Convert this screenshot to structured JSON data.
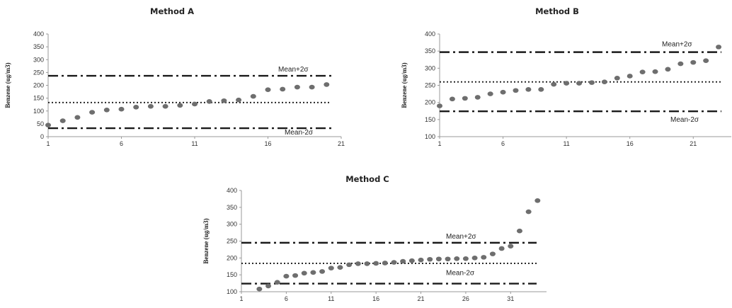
{
  "chart_data": [
    {
      "type": "scatter",
      "title": "Method A",
      "ylabel": "Benzene (ug/m3)",
      "xlabel": "",
      "xlim": [
        1,
        21
      ],
      "ylim": [
        0,
        400
      ],
      "xticks": [
        "1",
        "6",
        "11",
        "16",
        "21"
      ],
      "yticks": [
        "0",
        "50",
        "100",
        "150",
        "200",
        "250",
        "300",
        "350",
        "400"
      ],
      "grid": false,
      "x": [
        1,
        2,
        3,
        4,
        5,
        6,
        7,
        8,
        9,
        10,
        11,
        12,
        13,
        14,
        15,
        16,
        17,
        18,
        19,
        20
      ],
      "values": [
        45,
        62,
        75,
        95,
        104,
        107,
        115,
        118,
        118,
        122,
        127,
        137,
        140,
        143,
        157,
        183,
        185,
        193,
        193,
        203
      ],
      "mean": 133,
      "upper": 237,
      "lower": 33,
      "upper_label": "Mean+2σ",
      "lower_label": "Mean-2σ"
    },
    {
      "type": "scatter",
      "title": "Method B",
      "ylabel": "Benzene (ug/m3)",
      "xlabel": "",
      "xlim": [
        1,
        24
      ],
      "ylim": [
        100,
        400
      ],
      "xticks": [
        "1",
        "6",
        "11",
        "16",
        "21"
      ],
      "yticks": [
        "100",
        "150",
        "200",
        "250",
        "300",
        "350",
        "400"
      ],
      "grid": false,
      "x": [
        1,
        2,
        3,
        4,
        5,
        6,
        7,
        8,
        9,
        10,
        11,
        12,
        13,
        14,
        15,
        16,
        17,
        18,
        19,
        20,
        21,
        22,
        23
      ],
      "values": [
        190,
        210,
        212,
        215,
        225,
        230,
        235,
        238,
        238,
        253,
        256,
        256,
        258,
        260,
        271,
        277,
        289,
        290,
        297,
        313,
        317,
        322,
        362
      ],
      "mean": 260,
      "upper": 347,
      "lower": 174,
      "upper_label": "Mean+2σ",
      "lower_label": "Mean-2σ"
    },
    {
      "type": "scatter",
      "title": "Method C",
      "ylabel": "Benzene (ug/m3)",
      "xlabel": "",
      "xlim": [
        1,
        35
      ],
      "ylim": [
        100,
        400
      ],
      "xticks": [
        "1",
        "6",
        "11",
        "16",
        "21",
        "26",
        "31"
      ],
      "yticks": [
        "100",
        "150",
        "200",
        "250",
        "300",
        "350",
        "400"
      ],
      "grid": false,
      "x": [
        3,
        4,
        5,
        6,
        7,
        8,
        9,
        10,
        11,
        12,
        13,
        14,
        15,
        16,
        17,
        18,
        19,
        20,
        21,
        22,
        23,
        24,
        25,
        26,
        27,
        28,
        29,
        30,
        31,
        32,
        33,
        34
      ],
      "values": [
        108,
        117,
        128,
        146,
        148,
        155,
        157,
        160,
        170,
        172,
        180,
        183,
        183,
        184,
        185,
        187,
        190,
        192,
        194,
        196,
        197,
        197,
        198,
        198,
        200,
        202,
        212,
        228,
        235,
        280,
        337,
        370
      ],
      "mean": 184,
      "upper": 245,
      "lower": 124,
      "upper_label": "Mean+2σ",
      "lower_label": "Mean-2σ"
    }
  ]
}
